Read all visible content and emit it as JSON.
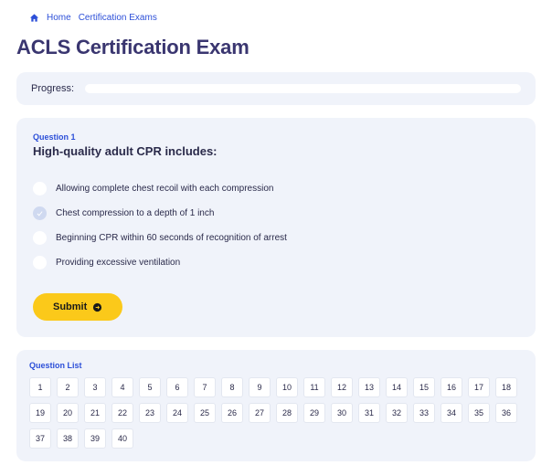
{
  "breadcrumb": {
    "home_label": "Home",
    "exams_label": "Certification Exams"
  },
  "page_title": "ACLS Certification Exam",
  "progress": {
    "label": "Progress:",
    "percent": 0,
    "bar_bg": "#ffffff"
  },
  "question": {
    "number_label": "Question 1",
    "text": "High-quality adult CPR includes:",
    "answers": [
      {
        "text": "Allowing complete chest recoil with each compression",
        "selected": false
      },
      {
        "text": "Chest compression to a depth of 1 inch",
        "selected": true
      },
      {
        "text": "Beginning CPR within 60 seconds of recognition of arrest",
        "selected": false
      },
      {
        "text": "Providing excessive ventilation",
        "selected": false
      }
    ],
    "submit_label": "Submit"
  },
  "question_list": {
    "title": "Question List",
    "count": 40
  },
  "colors": {
    "card_bg": "#f0f3fa",
    "accent": "#2c4fd8",
    "title": "#3a3670",
    "submit_bg": "#fbc91a",
    "radio_selected_bg": "#cfd9f0"
  }
}
